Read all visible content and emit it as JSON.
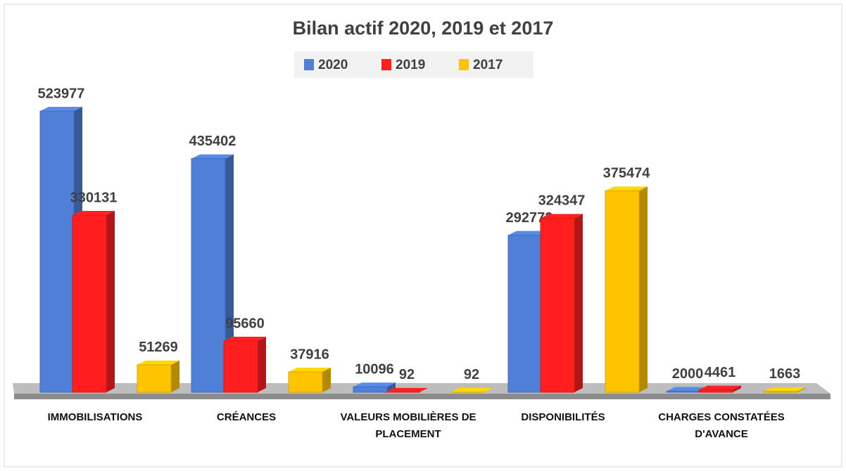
{
  "chart_data": {
    "type": "bar3d",
    "title": "Bilan actif 2020, 2019 et 2017",
    "categories": [
      "IMMOBILISATIONS",
      "CRÉANCES",
      "VALEURS MOBILIÈRES DE PLACEMENT",
      "DISPONIBILITÉS",
      "CHARGES CONSTATÉES D'AVANCE"
    ],
    "series": [
      {
        "name": "2020",
        "color": "#4f7fd6",
        "values": [
          523977,
          435402,
          10096,
          292772,
          2000
        ]
      },
      {
        "name": "2019",
        "color": "#ff1f1f",
        "values": [
          330131,
          95660,
          92,
          324347,
          4461
        ]
      },
      {
        "name": "2017",
        "color": "#ffc400",
        "values": [
          51269,
          37916,
          92,
          375474,
          1663
        ]
      }
    ],
    "legend": "top"
  }
}
